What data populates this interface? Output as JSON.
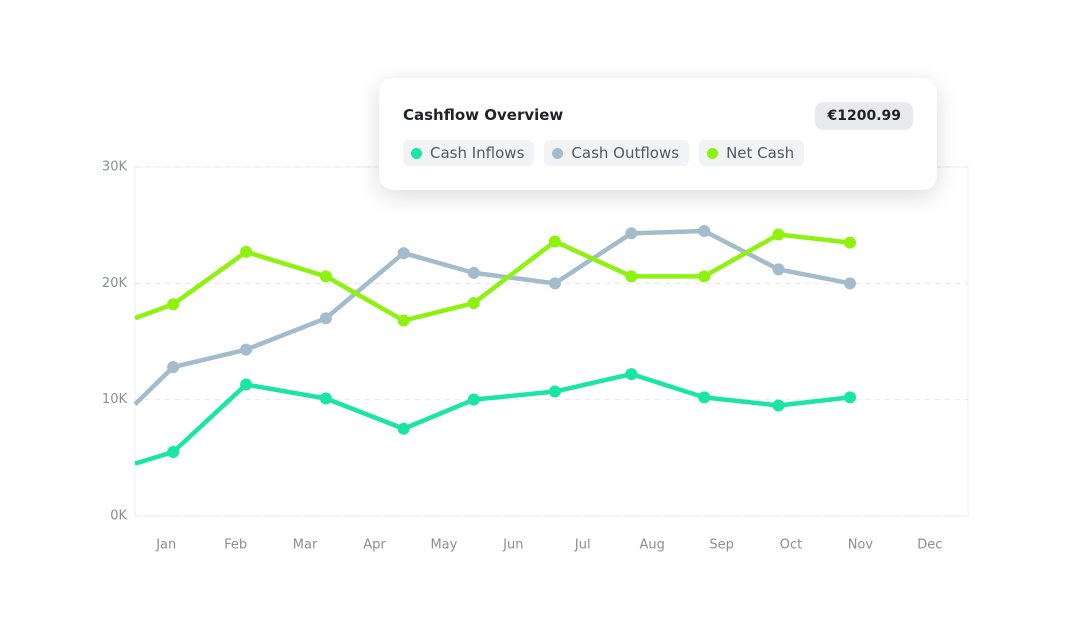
{
  "chart_data": {
    "type": "line",
    "title": "Cashflow Overview",
    "badge": "€1200.99",
    "x": [
      -0.45,
      0.1,
      1.15,
      2.3,
      3.42,
      4.43,
      5.6,
      6.7,
      7.75,
      8.82,
      9.85
    ],
    "xlim": [
      -0.45,
      11.55
    ],
    "xticks": [
      {
        "value": 0,
        "label": "Jan"
      },
      {
        "value": 1,
        "label": "Feb"
      },
      {
        "value": 2,
        "label": "Mar"
      },
      {
        "value": 3,
        "label": "Apr"
      },
      {
        "value": 4,
        "label": "May"
      },
      {
        "value": 5,
        "label": "Jun"
      },
      {
        "value": 6,
        "label": "Jul"
      },
      {
        "value": 7,
        "label": "Aug"
      },
      {
        "value": 8,
        "label": "Sep"
      },
      {
        "value": 9,
        "label": "Oct"
      },
      {
        "value": 10,
        "label": "Nov"
      },
      {
        "value": 11,
        "label": "Dec"
      }
    ],
    "ylim": [
      0,
      30000
    ],
    "yticks": [
      {
        "value": 0,
        "label": "0K"
      },
      {
        "value": 10000,
        "label": "10K"
      },
      {
        "value": 20000,
        "label": "20K"
      },
      {
        "value": 30000,
        "label": "30K"
      }
    ],
    "grid": true,
    "series": [
      {
        "name": "Cash Inflows",
        "color": "#19e6a4",
        "values": [
          4500,
          5500,
          11300,
          10100,
          7500,
          10000,
          10700,
          12200,
          10200,
          9500,
          10200
        ]
      },
      {
        "name": "Cash Outflows",
        "color": "#a2bccb",
        "values": [
          9600,
          12800,
          14300,
          17000,
          22600,
          20900,
          20000,
          24300,
          24500,
          21200,
          20000
        ]
      },
      {
        "name": "Net Cash",
        "color": "#8ef20f",
        "values": [
          17000,
          18200,
          22700,
          20600,
          16800,
          18300,
          23600,
          20600,
          20600,
          24200,
          23500
        ]
      }
    ]
  }
}
